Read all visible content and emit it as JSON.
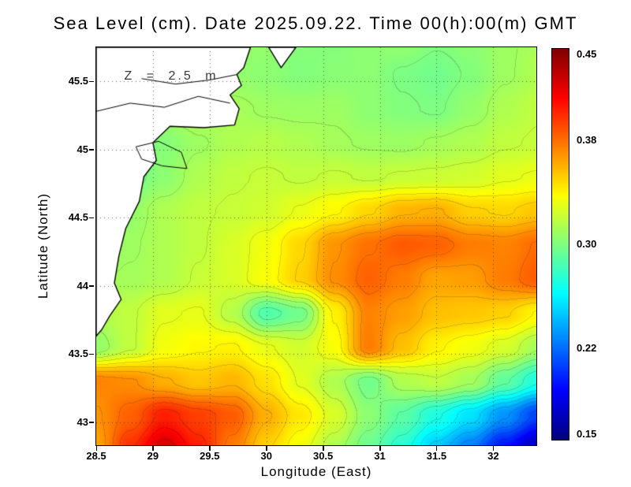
{
  "title": "Sea Level (cm). Date 2025.09.22. Time 00(h):00(m) GMT",
  "annotation": {
    "text": "Z = 2.5 m"
  },
  "axes": {
    "xlabel": "Longitude (East)",
    "ylabel": "Latitude (North)",
    "x_range": [
      28.5,
      32.38
    ],
    "y_range": [
      42.83,
      45.75
    ],
    "grid": "dotted",
    "x_ticks": [
      {
        "v": 28.5,
        "l": "28.5"
      },
      {
        "v": 29,
        "l": "29"
      },
      {
        "v": 29.5,
        "l": "29.5"
      },
      {
        "v": 30,
        "l": "30"
      },
      {
        "v": 30.5,
        "l": "30.5"
      },
      {
        "v": 31,
        "l": "31"
      },
      {
        "v": 31.5,
        "l": "31.5"
      },
      {
        "v": 32,
        "l": "32"
      }
    ],
    "y_ticks": [
      {
        "v": 43,
        "l": "43"
      },
      {
        "v": 43.5,
        "l": "43.5"
      },
      {
        "v": 44,
        "l": "44"
      },
      {
        "v": 44.5,
        "l": "44.5"
      },
      {
        "v": 45,
        "l": "45"
      },
      {
        "v": 45.5,
        "l": "45.5"
      }
    ]
  },
  "colorbar": {
    "min": 0.15,
    "max": 0.45,
    "colormap": "jet",
    "ticks": [
      {
        "v": 0.45,
        "l": "0.45"
      },
      {
        "v": 0.38,
        "l": "0.38"
      },
      {
        "v": 0.3,
        "l": "0.30"
      },
      {
        "v": 0.22,
        "l": "0.22"
      },
      {
        "v": 0.15,
        "l": "0.15"
      }
    ]
  },
  "chart_data": {
    "type": "heatmap",
    "quantity": "Sea Level (cm)",
    "date": "2025.09.22",
    "time": "00(h):00(m) GMT",
    "depth_label": "Z = 2.5 m",
    "contour_interval": 0.01,
    "lon": [
      28.5,
      28.8,
      29.1,
      29.4,
      29.7,
      30.0,
      30.3,
      30.6,
      30.9,
      31.2,
      31.5,
      31.8,
      32.1,
      32.4
    ],
    "lat": [
      45.8,
      45.55,
      45.3,
      45.05,
      44.8,
      44.55,
      44.3,
      44.05,
      43.8,
      43.55,
      43.3,
      43.05,
      42.8
    ],
    "values": [
      [
        0.31,
        0.312,
        0.309,
        0.311,
        0.308,
        0.306,
        0.302,
        0.301,
        0.304,
        0.306,
        0.301,
        0.304,
        0.309,
        0.312
      ],
      [
        0.312,
        0.309,
        0.311,
        0.308,
        0.306,
        0.304,
        0.301,
        0.303,
        0.304,
        0.299,
        0.296,
        0.301,
        0.309,
        0.314
      ],
      [
        0.309,
        0.311,
        0.314,
        0.316,
        0.312,
        0.309,
        0.308,
        0.309,
        0.304,
        0.301,
        0.299,
        0.306,
        0.314,
        0.319
      ],
      [
        0.299,
        0.296,
        0.302,
        0.309,
        0.314,
        0.316,
        0.314,
        0.311,
        0.309,
        0.308,
        0.311,
        0.314,
        0.319,
        0.321
      ],
      [
        0.294,
        0.297,
        0.304,
        0.314,
        0.319,
        0.321,
        0.319,
        0.321,
        0.319,
        0.321,
        0.322,
        0.324,
        0.329,
        0.331
      ],
      [
        0.301,
        0.306,
        0.314,
        0.319,
        0.321,
        0.324,
        0.331,
        0.339,
        0.349,
        0.359,
        0.361,
        0.351,
        0.349,
        0.354
      ],
      [
        0.304,
        0.309,
        0.314,
        0.319,
        0.326,
        0.334,
        0.349,
        0.369,
        0.379,
        0.386,
        0.384,
        0.376,
        0.374,
        0.381
      ],
      [
        0.309,
        0.311,
        0.314,
        0.321,
        0.326,
        0.336,
        0.351,
        0.371,
        0.384,
        0.376,
        0.364,
        0.366,
        0.376,
        0.386
      ],
      [
        0.314,
        0.319,
        0.329,
        0.331,
        0.316,
        0.286,
        0.296,
        0.341,
        0.374,
        0.366,
        0.356,
        0.354,
        0.351,
        0.339
      ],
      [
        0.306,
        0.319,
        0.334,
        0.339,
        0.341,
        0.331,
        0.324,
        0.336,
        0.376,
        0.356,
        0.341,
        0.334,
        0.326,
        0.311
      ],
      [
        0.374,
        0.371,
        0.361,
        0.354,
        0.359,
        0.346,
        0.329,
        0.314,
        0.296,
        0.314,
        0.319,
        0.311,
        0.291,
        0.271
      ],
      [
        0.369,
        0.384,
        0.404,
        0.394,
        0.386,
        0.361,
        0.344,
        0.326,
        0.304,
        0.289,
        0.271,
        0.254,
        0.231,
        0.206
      ],
      [
        0.364,
        0.399,
        0.425,
        0.404,
        0.376,
        0.351,
        0.334,
        0.314,
        0.294,
        0.274,
        0.246,
        0.224,
        0.191,
        0.164
      ]
    ],
    "land_polygons": [
      [
        [
          28.5,
          45.75
        ],
        [
          29.86,
          45.75
        ],
        [
          29.8,
          45.6
        ],
        [
          29.74,
          45.55
        ],
        [
          29.78,
          45.47
        ],
        [
          29.68,
          45.4
        ],
        [
          29.76,
          45.3
        ],
        [
          29.72,
          45.18
        ],
        [
          29.45,
          45.16
        ],
        [
          29.15,
          45.17
        ],
        [
          29.0,
          45.05
        ],
        [
          29.03,
          44.92
        ],
        [
          28.92,
          44.8
        ],
        [
          28.88,
          44.62
        ],
        [
          28.76,
          44.42
        ],
        [
          28.7,
          44.22
        ],
        [
          28.66,
          44.02
        ],
        [
          28.72,
          43.9
        ],
        [
          28.62,
          43.78
        ],
        [
          28.55,
          43.68
        ],
        [
          28.5,
          43.63
        ]
      ],
      [
        [
          30.02,
          45.75
        ],
        [
          30.26,
          45.75
        ],
        [
          30.13,
          45.6
        ]
      ]
    ],
    "land_lines": [
      [
        [
          28.85,
          45.02
        ],
        [
          29.05,
          45.06
        ],
        [
          29.25,
          44.98
        ],
        [
          29.3,
          44.86
        ],
        [
          29.08,
          44.88
        ],
        [
          28.9,
          44.93
        ],
        [
          28.85,
          45.02
        ]
      ],
      [
        [
          28.5,
          45.28
        ],
        [
          28.8,
          45.34
        ],
        [
          29.1,
          45.31
        ],
        [
          29.4,
          45.39
        ],
        [
          29.68,
          45.34
        ]
      ],
      [
        [
          28.9,
          45.52
        ],
        [
          29.2,
          45.48
        ],
        [
          29.5,
          45.51
        ],
        [
          29.74,
          45.55
        ]
      ]
    ]
  }
}
